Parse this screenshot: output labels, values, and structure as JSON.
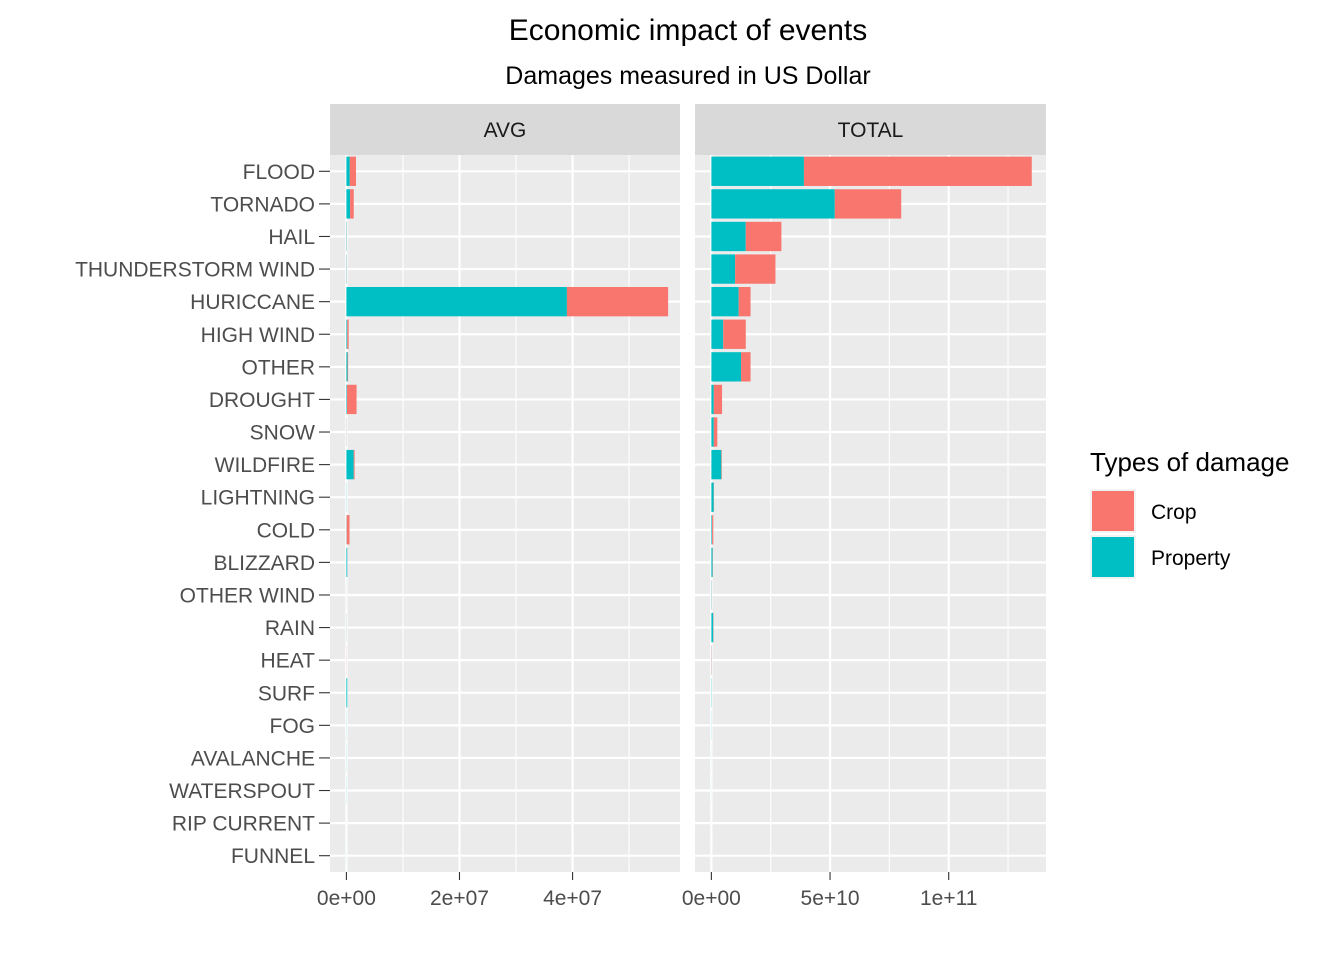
{
  "chart_data": {
    "type": "bar",
    "orientation": "horizontal",
    "stacked": true,
    "title": "Economic impact of events",
    "subtitle": "Damages measured in US Dollar",
    "categories": [
      "FLOOD",
      "TORNADO",
      "HAIL",
      "THUNDERSTORM WIND",
      "HURICCANE",
      "HIGH WIND",
      "OTHER",
      "DROUGHT",
      "SNOW",
      "WILDFIRE",
      "LIGHTNING",
      "COLD",
      "BLIZZARD",
      "OTHER WIND",
      "RAIN",
      "HEAT",
      "SURF",
      "FOG",
      "AVALANCHE",
      "WATERSPOUT",
      "RIP CURRENT",
      "FUNNEL"
    ],
    "legend": {
      "title": "Types of damage",
      "position": "right",
      "entries": [
        {
          "label": "Crop",
          "color": "#F8766D"
        },
        {
          "label": "Property",
          "color": "#00BFC4"
        }
      ]
    },
    "grid": true,
    "facets": [
      {
        "label": "AVG",
        "xlim": [
          -2900000,
          59000000
        ],
        "xticks": [
          0,
          20000000,
          40000000
        ],
        "xtick_labels": [
          "0e+00",
          "2e+07",
          "4e+07"
        ],
        "series": [
          {
            "name": "Property",
            "color": "#00BFC4",
            "values": [
              600000,
              650000,
              60000,
              50000,
              39000000,
              150000,
              200000,
              100000,
              20000,
              1300000,
              30000,
              50000,
              150000,
              10000,
              20000,
              5000,
              150000,
              20000,
              20000,
              20000,
              5000,
              10000
            ]
          },
          {
            "name": "Crop",
            "color": "#F8766D",
            "values": [
              1100000,
              650000,
              20000,
              20000,
              17900000,
              250000,
              100000,
              1700000,
              20000,
              150000,
              0,
              500000,
              20000,
              5000,
              10000,
              20000,
              0,
              0,
              0,
              0,
              0,
              0
            ]
          }
        ]
      },
      {
        "label": "TOTAL",
        "xlim": [
          -6900000000,
          141000000000
        ],
        "xticks": [
          0,
          50000000000,
          100000000000
        ],
        "xtick_labels": [
          "0e+00",
          "5e+10",
          "1e+11"
        ],
        "series": [
          {
            "name": "Property",
            "color": "#00BFC4",
            "values": [
              39000000000,
              52000000000,
              14500000000,
              10000000000,
              11500000000,
              5000000000,
              12500000000,
              1000000000,
              1000000000,
              4200000000,
              1000000000,
              300000000,
              500000000,
              100000000,
              800000000,
              50000000,
              100000000,
              50000000,
              20000000,
              20000000,
              10000000,
              10000000
            ]
          },
          {
            "name": "Crop",
            "color": "#F8766D",
            "values": [
              96000000000,
              28000000000,
              15000000000,
              17000000000,
              5000000000,
              9500000000,
              4000000000,
              3500000000,
              1500000000,
              200000000,
              100000000,
              500000000,
              100000000,
              50000000,
              100000000,
              100000000,
              0,
              0,
              0,
              0,
              0,
              0
            ]
          }
        ]
      }
    ]
  }
}
